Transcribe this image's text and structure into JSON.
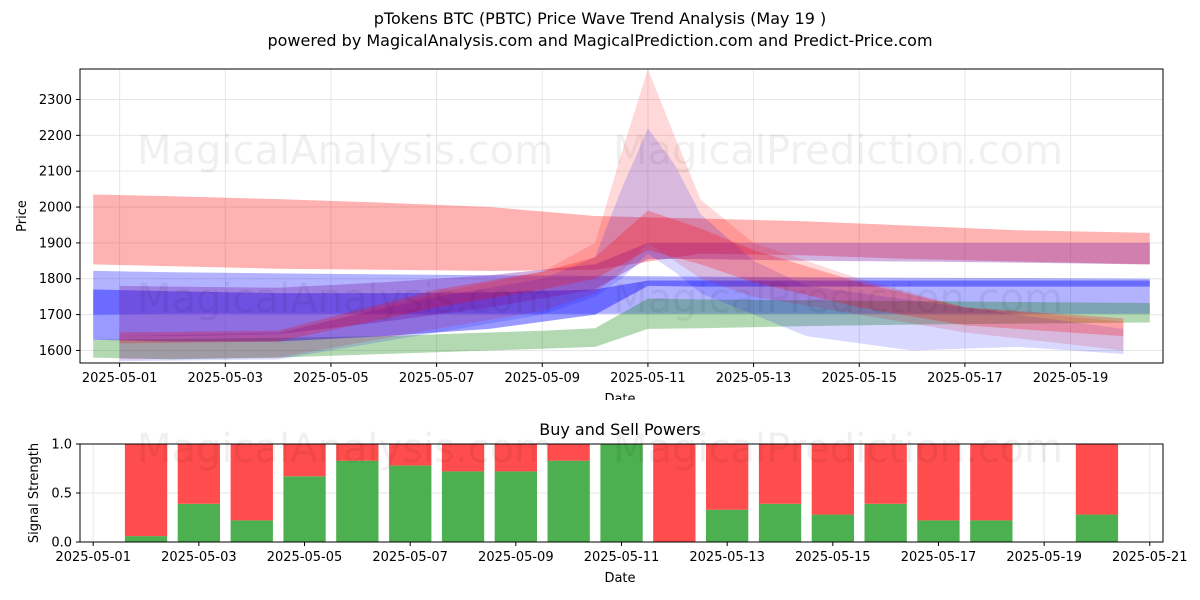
{
  "header": {
    "title": "pTokens BTC (PBTC) Price Wave Trend Analysis (May 19 )",
    "subtitle": "powered by MagicalAnalysis.com and MagicalPrediction.com and Predict-Price.com"
  },
  "watermarks": {
    "top_left": "MagicalAnalysis.com",
    "top_right": "MagicalPrediction.com"
  },
  "colors": {
    "red": "#ff0000",
    "blue": "#0000ff",
    "green": "#008000",
    "buy": "#4caf50",
    "sell": "#ff4c4c",
    "grid": "#e6e6e6"
  },
  "chart_data": [
    {
      "type": "area",
      "title": "",
      "xlabel": "Date",
      "ylabel": "Price",
      "ylim": [
        1565,
        2385
      ],
      "xlim": [
        "2025-04-30 06:00",
        "2025-05-20 18:00"
      ],
      "x_ticks": [
        "2025-05-01",
        "2025-05-03",
        "2025-05-05",
        "2025-05-07",
        "2025-05-09",
        "2025-05-11",
        "2025-05-13",
        "2025-05-15",
        "2025-05-17",
        "2025-05-19"
      ],
      "y_ticks": [
        1600,
        1700,
        1800,
        1900,
        2000,
        2100,
        2200,
        2300
      ],
      "grid": true,
      "bands": [
        {
          "color": "red",
          "opacity": 0.3,
          "x": [
            "2025-04-30 12:00",
            "2025-05-02",
            "2025-05-04",
            "2025-05-06",
            "2025-05-08",
            "2025-05-10",
            "2025-05-12",
            "2025-05-14",
            "2025-05-16",
            "2025-05-18",
            "2025-05-20 12:00"
          ],
          "upper": [
            2035,
            2030,
            2022,
            2012,
            2000,
            1975,
            1968,
            1960,
            1948,
            1935,
            1928
          ],
          "lower": [
            1840,
            1835,
            1828,
            1825,
            1822,
            1825,
            1870,
            1865,
            1855,
            1848,
            1840
          ]
        },
        {
          "color": "blue",
          "opacity": 0.3,
          "x": [
            "2025-04-30 12:00",
            "2025-05-02",
            "2025-05-04",
            "2025-05-06",
            "2025-05-08",
            "2025-05-10",
            "2025-05-12",
            "2025-05-14",
            "2025-05-16",
            "2025-05-18",
            "2025-05-20 12:00"
          ],
          "upper": [
            1822,
            1818,
            1815,
            1812,
            1810,
            1808,
            1806,
            1804,
            1803,
            1802,
            1800
          ],
          "lower": [
            1700,
            1702,
            1702,
            1702,
            1702,
            1702,
            1702,
            1702,
            1702,
            1702,
            1702
          ]
        },
        {
          "color": "green",
          "opacity": 0.3,
          "x": [
            "2025-04-30 12:00",
            "2025-05-02",
            "2025-05-04",
            "2025-05-06",
            "2025-05-08",
            "2025-05-09",
            "2025-05-10",
            "2025-05-11",
            "2025-05-12",
            "2025-05-14",
            "2025-05-16",
            "2025-05-18",
            "2025-05-20 12:00"
          ],
          "upper": [
            1630,
            1632,
            1635,
            1640,
            1650,
            1655,
            1662,
            1745,
            1742,
            1740,
            1738,
            1735,
            1732
          ],
          "lower": [
            1580,
            1575,
            1580,
            1590,
            1600,
            1605,
            1610,
            1660,
            1662,
            1668,
            1672,
            1675,
            1678
          ]
        },
        {
          "color": "blue",
          "opacity": 0.4,
          "x": [
            "2025-04-30 12:00",
            "2025-05-02",
            "2025-05-04",
            "2025-05-06",
            "2025-05-08",
            "2025-05-10",
            "2025-05-11",
            "2025-05-12",
            "2025-05-14",
            "2025-05-16",
            "2025-05-18",
            "2025-05-20 12:00"
          ],
          "upper": [
            1770,
            1765,
            1760,
            1760,
            1762,
            1770,
            1795,
            1795,
            1795,
            1795,
            1795,
            1795
          ],
          "lower": [
            1630,
            1625,
            1625,
            1640,
            1660,
            1700,
            1780,
            1778,
            1778,
            1778,
            1778,
            1778
          ]
        },
        {
          "color": "purple",
          "opacity": 0.35,
          "x": [
            "2025-05-01",
            "2025-05-02",
            "2025-05-04",
            "2025-05-06",
            "2025-05-08",
            "2025-05-10",
            "2025-05-11",
            "2025-05-12",
            "2025-05-14",
            "2025-05-16",
            "2025-05-18",
            "2025-05-20 12:00"
          ],
          "upper": [
            1780,
            1778,
            1775,
            1790,
            1810,
            1840,
            1900,
            1900,
            1900,
            1900,
            1900,
            1900
          ],
          "lower": [
            1640,
            1640,
            1645,
            1680,
            1720,
            1770,
            1855,
            1855,
            1850,
            1848,
            1845,
            1840
          ]
        },
        {
          "color": "red",
          "opacity": 0.15,
          "x": [
            "2025-05-01",
            "2025-05-04",
            "2025-05-07",
            "2025-05-09",
            "2025-05-10",
            "2025-05-10 12:00",
            "2025-05-11",
            "2025-05-11 12:00",
            "2025-05-12",
            "2025-05-13",
            "2025-05-15",
            "2025-05-17",
            "2025-05-20"
          ],
          "upper": [
            1640,
            1645,
            1760,
            1820,
            1900,
            2150,
            2385,
            2200,
            2020,
            1900,
            1800,
            1720,
            1680
          ],
          "lower": [
            1575,
            1580,
            1660,
            1710,
            1760,
            1820,
            1900,
            1850,
            1800,
            1750,
            1700,
            1650,
            1600
          ]
        },
        {
          "color": "blue",
          "opacity": 0.15,
          "x": [
            "2025-05-01",
            "2025-05-04",
            "2025-05-07",
            "2025-05-09",
            "2025-05-10",
            "2025-05-10 12:00",
            "2025-05-11",
            "2025-05-11 12:00",
            "2025-05-12",
            "2025-05-13",
            "2025-05-14",
            "2025-05-16",
            "2025-05-18",
            "2025-05-20"
          ],
          "upper": [
            1640,
            1650,
            1750,
            1800,
            1860,
            2050,
            2220,
            2120,
            1980,
            1850,
            1780,
            1740,
            1700,
            1660
          ],
          "lower": [
            1570,
            1575,
            1650,
            1700,
            1750,
            1800,
            1870,
            1820,
            1760,
            1700,
            1640,
            1600,
            1610,
            1590
          ]
        },
        {
          "color": "red",
          "opacity": 0.25,
          "x": [
            "2025-05-01",
            "2025-05-04",
            "2025-05-07",
            "2025-05-09",
            "2025-05-10",
            "2025-05-11",
            "2025-05-12",
            "2025-05-13",
            "2025-05-15",
            "2025-05-17",
            "2025-05-20"
          ],
          "upper": [
            1650,
            1655,
            1770,
            1820,
            1860,
            1990,
            1940,
            1880,
            1790,
            1720,
            1690
          ],
          "lower": [
            1620,
            1625,
            1720,
            1770,
            1800,
            1880,
            1840,
            1790,
            1720,
            1670,
            1640
          ]
        }
      ]
    },
    {
      "type": "bar",
      "title": "Buy and Sell Powers",
      "xlabel": "Date",
      "ylabel": "Signal Strength",
      "ylim": [
        0,
        1
      ],
      "xlim": [
        "2025-04-30 18:00",
        "2025-05-21 06:00"
      ],
      "x_ticks": [
        "2025-05-01",
        "2025-05-03",
        "2025-05-05",
        "2025-05-07",
        "2025-05-09",
        "2025-05-11",
        "2025-05-13",
        "2025-05-15",
        "2025-05-17",
        "2025-05-19",
        "2025-05-21"
      ],
      "y_ticks": [
        "0.0",
        "0.5",
        "1.0"
      ],
      "grid": true,
      "categories": [
        "2025-05-02",
        "2025-05-03",
        "2025-05-04",
        "2025-05-05",
        "2025-05-06",
        "2025-05-07",
        "2025-05-08",
        "2025-05-09",
        "2025-05-10",
        "2025-05-11",
        "2025-05-12",
        "2025-05-13",
        "2025-05-14",
        "2025-05-15",
        "2025-05-16",
        "2025-05-17",
        "2025-05-18",
        "2025-05-20"
      ],
      "series": [
        {
          "role": "buy",
          "values": [
            0.06,
            0.39,
            0.22,
            0.67,
            0.83,
            0.78,
            0.72,
            0.72,
            0.83,
            1.0,
            0.0,
            0.33,
            0.39,
            0.28,
            0.39,
            0.22,
            0.22,
            0.28
          ]
        },
        {
          "role": "sell",
          "values": [
            0.94,
            0.61,
            0.78,
            0.33,
            0.17,
            0.22,
            0.28,
            0.28,
            0.17,
            0.0,
            1.0,
            0.67,
            0.61,
            0.72,
            0.61,
            0.78,
            0.78,
            0.72
          ]
        }
      ]
    }
  ]
}
